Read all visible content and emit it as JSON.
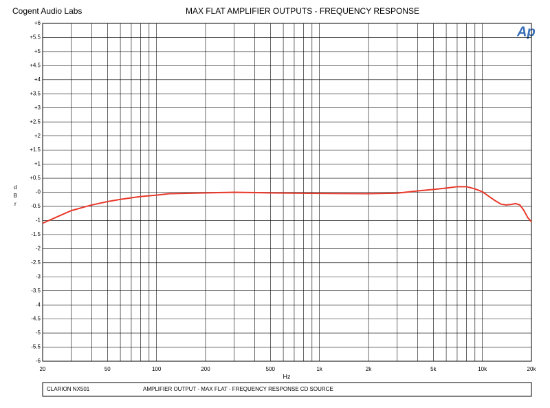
{
  "header": {
    "company": "Cogent Audio Labs",
    "logo": "Ap"
  },
  "chart_data": {
    "type": "line",
    "title": "MAX FLAT  AMPLIFIER OUTPUTS  -  FREQUENCY RESPONSE",
    "x_label": "Hz",
    "y_label": "dBr",
    "xscale": "log",
    "grid": true,
    "xlim": [
      20,
      20000
    ],
    "ylim": [
      -6,
      6
    ],
    "xticks": [
      20,
      50,
      100,
      200,
      500,
      {
        "value": 1000,
        "label": "1k"
      },
      {
        "value": 2000,
        "label": "2k"
      },
      {
        "value": 5000,
        "label": "5k"
      },
      {
        "value": 10000,
        "label": "10k"
      },
      {
        "value": 20000,
        "label": "20k"
      }
    ],
    "xminor": [
      30,
      40,
      60,
      70,
      80,
      90,
      300,
      400,
      600,
      700,
      800,
      900,
      3000,
      4000,
      6000,
      7000,
      8000,
      9000
    ],
    "yticks": [
      {
        "value": 6,
        "label": "+6"
      },
      {
        "value": 5.5,
        "label": "+5.5"
      },
      {
        "value": 5,
        "label": "+5"
      },
      {
        "value": 4.5,
        "label": "+4.5"
      },
      {
        "value": 4,
        "label": "+4"
      },
      {
        "value": 3.5,
        "label": "+3.5"
      },
      {
        "value": 3,
        "label": "+3"
      },
      {
        "value": 2.5,
        "label": "+2.5"
      },
      {
        "value": 2,
        "label": "+2"
      },
      {
        "value": 1.5,
        "label": "+1.5"
      },
      {
        "value": 1,
        "label": "+1"
      },
      {
        "value": 0.5,
        "label": "+0.5"
      },
      {
        "value": 0,
        "label": "-0"
      },
      -0.5,
      -1,
      -1.5,
      -2,
      -2.5,
      -3,
      -3.5,
      -4,
      -4.5,
      -5,
      -5.5,
      -6
    ],
    "series": [
      {
        "color": "#e8382a",
        "x": [
          20,
          25,
          30,
          40,
          50,
          60,
          80,
          100,
          120,
          200,
          300,
          500,
          1000,
          2000,
          3000,
          4000,
          5000,
          6000,
          7000,
          8000,
          9000,
          10000,
          11000,
          12000,
          13000,
          14000,
          15000,
          16000,
          17000,
          18000,
          19000,
          20000
        ],
        "values": [
          -1.1,
          -0.85,
          -0.65,
          -0.45,
          -0.33,
          -0.25,
          -0.15,
          -0.1,
          -0.05,
          -0.02,
          0,
          -0.02,
          -0.04,
          -0.05,
          -0.03,
          0.05,
          0.1,
          0.15,
          0.2,
          0.2,
          0.12,
          0.02,
          -0.15,
          -0.3,
          -0.42,
          -0.45,
          -0.43,
          -0.4,
          -0.45,
          -0.65,
          -0.9,
          -1.05
        ]
      }
    ]
  },
  "footer": {
    "left": "CLARION NX501",
    "right": "AMPLIFIER OUTPUT - MAX FLAT - FREQUENCY RESPONSE  CD SOURCE"
  }
}
